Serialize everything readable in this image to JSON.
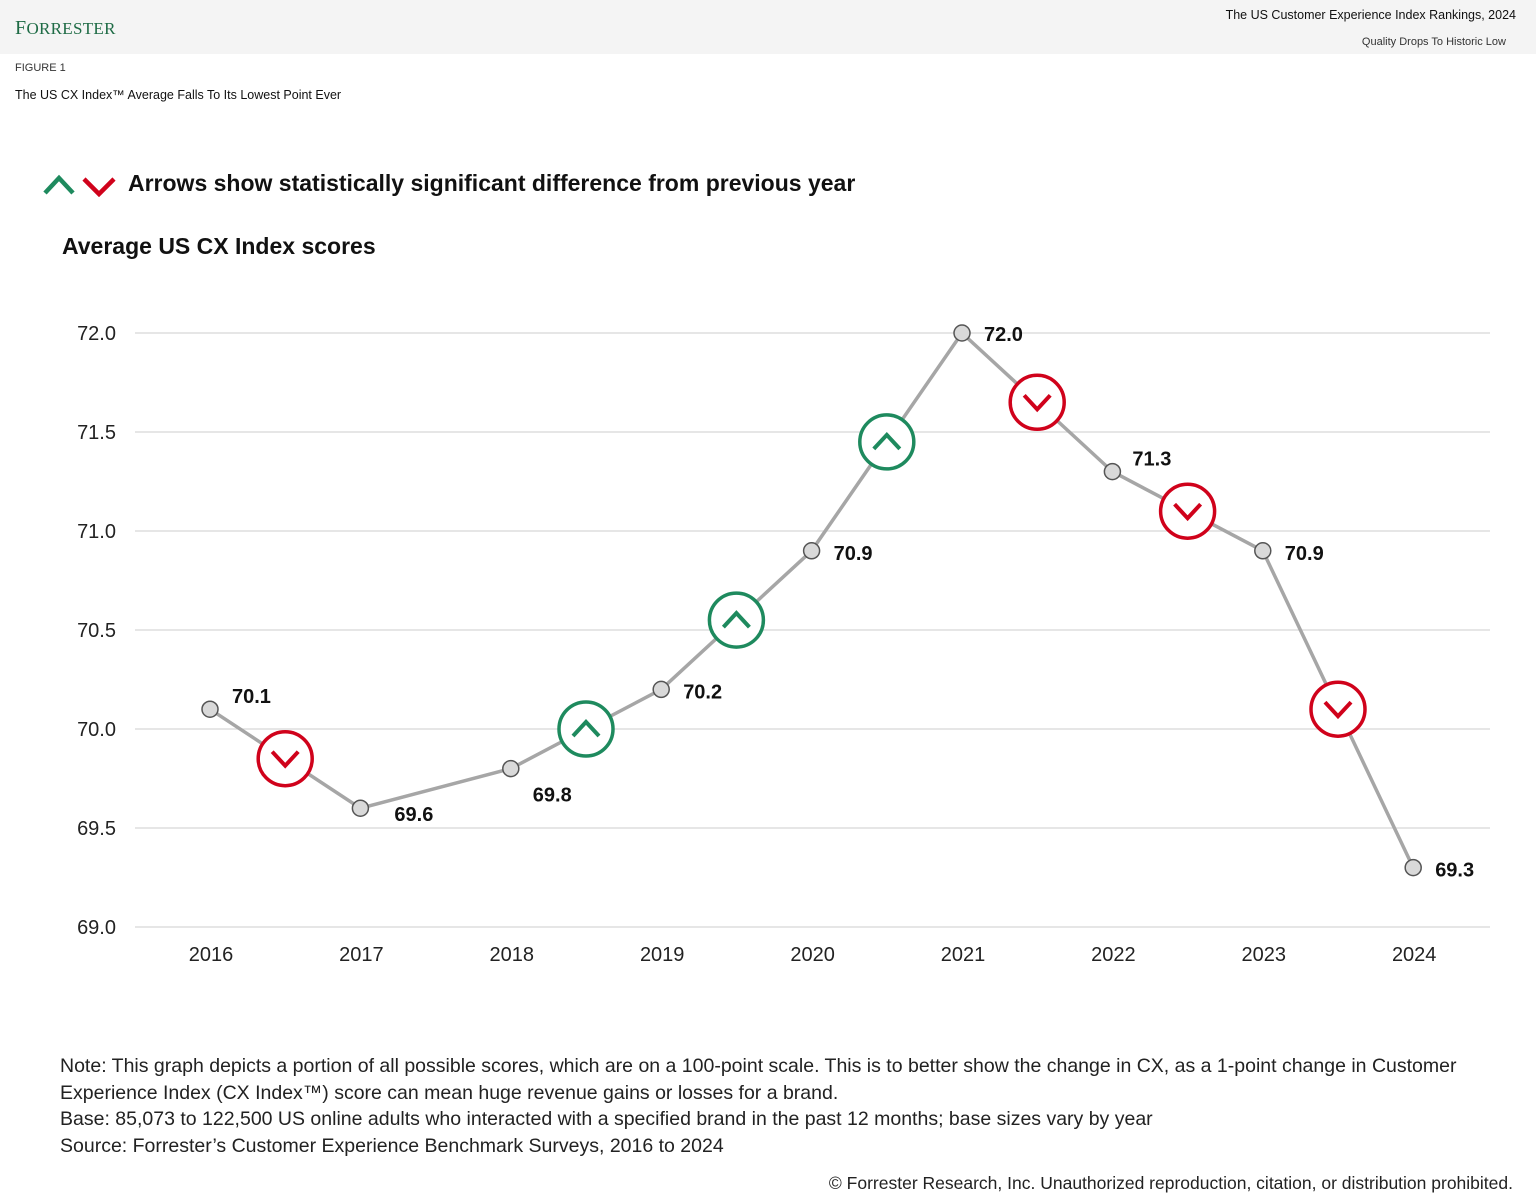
{
  "header": {
    "logo": "Forrester",
    "report_title": "The US Customer Experience Index Rankings, 2024",
    "report_subtitle": "Quality Drops To Historic Low"
  },
  "figure": {
    "label": "FIGURE 1",
    "title": "The US CX Index™ Average Falls To Its Lowest Point Ever"
  },
  "legend": {
    "text": "Arrows show statistically significant difference from previous year"
  },
  "colors": {
    "up": "#1e8a5e",
    "down": "#d0021b",
    "line": "#a6a6a6",
    "marker_fill": "#d9d9d9",
    "grid": "#d8d8d8"
  },
  "chart_data": {
    "type": "line",
    "title": "Average US CX Index scores",
    "categories": [
      "2016",
      "2017",
      "2018",
      "2019",
      "2020",
      "2021",
      "2022",
      "2023",
      "2024"
    ],
    "values": [
      70.1,
      69.6,
      69.8,
      70.2,
      70.9,
      72.0,
      71.3,
      70.9,
      69.3
    ],
    "value_labels": [
      "70.1",
      "69.6",
      "69.8",
      "70.2",
      "70.9",
      "72.0",
      "71.3",
      "70.9",
      "69.3"
    ],
    "significant_changes": [
      {
        "between": [
          "2016",
          "2017"
        ],
        "direction": "down"
      },
      {
        "between": [
          "2018",
          "2019"
        ],
        "direction": "up"
      },
      {
        "between": [
          "2019",
          "2020"
        ],
        "direction": "up"
      },
      {
        "between": [
          "2020",
          "2021"
        ],
        "direction": "up"
      },
      {
        "between": [
          "2021",
          "2022"
        ],
        "direction": "down"
      },
      {
        "between": [
          "2022",
          "2023"
        ],
        "direction": "down"
      },
      {
        "between": [
          "2023",
          "2024"
        ],
        "direction": "down"
      }
    ],
    "ylim": [
      69.0,
      72.0
    ],
    "yticks": [
      "69.0",
      "69.5",
      "70.0",
      "70.5",
      "71.0",
      "71.5",
      "72.0"
    ],
    "grid": true
  },
  "notes": {
    "note": "Note: This graph depicts a portion of all possible scores, which are on a 100-point scale. This is to better show the change in CX, as a 1-point change in Customer Experience Index (CX Index™) score can mean huge revenue gains or losses for a brand.",
    "base": "Base: 85,073 to 122,500 US online adults who interacted with a specified brand in the past 12 months; base sizes vary by year",
    "source": "Source: Forrester’s Customer Experience Benchmark Surveys, 2016 to 2024"
  },
  "copyright": "© Forrester Research, Inc. Unauthorized reproduction, citation, or distribution prohibited."
}
